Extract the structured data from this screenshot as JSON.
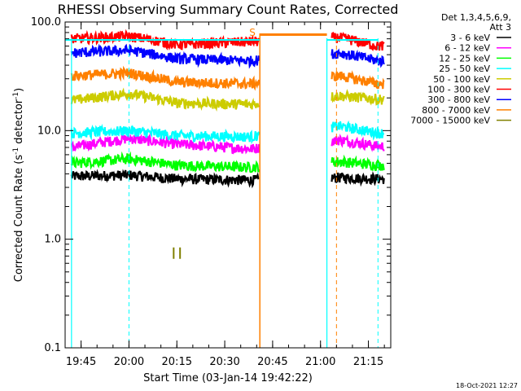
{
  "chart_data": {
    "type": "line",
    "title": "RHESSI Observing Summary Count Rates, Corrected",
    "xlabel": "Start Time (03-Jan-14 19:42:22)",
    "ylabel_main": "Corrected Count Rate (s",
    "ylabel_sup1": "-1",
    "ylabel_mid": " detector",
    "ylabel_sup2": "-1",
    "ylabel_end": ")",
    "y_scale": "log",
    "ylim": [
      0.1,
      100.0
    ],
    "xlim": [
      "19:40",
      "21:22"
    ],
    "x_ticks": [
      "19:45",
      "20:00",
      "20:15",
      "20:30",
      "20:45",
      "21:00",
      "21:15"
    ],
    "y_ticks": [
      "0.1",
      "1.0",
      "10.0",
      "100.0"
    ],
    "legend_header": [
      "Det 1,3,4,5,6,9,",
      "Att 3"
    ],
    "legend_position": "right",
    "series": [
      {
        "name": "3 - 6 keV",
        "color": "#000000",
        "x": [
          "19:42",
          "20:00",
          "20:15",
          "20:38",
          "21:06",
          "21:18"
        ],
        "y": [
          3.8,
          3.9,
          3.6,
          3.5,
          3.7,
          3.6
        ]
      },
      {
        "name": "6 - 12 keV",
        "color": "#ff00ff",
        "x": [
          "19:42",
          "20:00",
          "20:15",
          "20:38",
          "21:06",
          "21:18"
        ],
        "y": [
          7.0,
          8.5,
          7.5,
          6.8,
          8.2,
          7.2
        ]
      },
      {
        "name": "12 - 25 keV",
        "color": "#00ff00",
        "x": [
          "19:42",
          "20:00",
          "20:15",
          "20:38",
          "21:06",
          "21:18"
        ],
        "y": [
          5.0,
          5.5,
          4.8,
          4.6,
          5.2,
          4.8
        ]
      },
      {
        "name": "25 - 50 keV",
        "color": "#00ffff",
        "x": [
          "19:42",
          "20:00",
          "20:15",
          "20:38",
          "21:06",
          "21:18"
        ],
        "y": [
          9.5,
          10.0,
          9.0,
          8.8,
          11.0,
          9.5
        ]
      },
      {
        "name": "50 - 100 keV",
        "color": "#cccc00",
        "x": [
          "19:42",
          "20:00",
          "20:15",
          "20:38",
          "21:06",
          "21:18"
        ],
        "y": [
          19.0,
          22.0,
          18.0,
          17.5,
          21.0,
          19.5
        ]
      },
      {
        "name": "100 - 300 keV",
        "color": "#ff0000",
        "x": [
          "19:42",
          "20:00",
          "20:15",
          "20:38",
          "21:06",
          "21:18"
        ],
        "y": [
          70.0,
          74.0,
          62.0,
          66.0,
          72.0,
          60.0
        ]
      },
      {
        "name": "300 - 800 keV",
        "color": "#0000ff",
        "x": [
          "19:42",
          "20:00",
          "20:15",
          "20:38",
          "21:06",
          "21:18"
        ],
        "y": [
          52.0,
          55.0,
          46.0,
          44.0,
          52.0,
          44.0
        ]
      },
      {
        "name": "800 - 7000 keV",
        "color": "#ff8000",
        "x": [
          "19:42",
          "20:00",
          "20:15",
          "20:38",
          "21:06",
          "21:18"
        ],
        "y": [
          32.0,
          34.0,
          28.0,
          27.0,
          32.0,
          27.0
        ]
      },
      {
        "name": "7000 - 15000 keV",
        "color": "#808000",
        "x": [
          "20:14",
          "20:16"
        ],
        "y": [
          0.75,
          0.75
        ]
      }
    ],
    "annotations": [
      {
        "text": "S",
        "color": "#ff8000",
        "x": "20:40"
      }
    ],
    "markers": {
      "saa_span": [
        "20:41",
        "21:02"
      ],
      "night_lines": [
        "19:42",
        "21:02"
      ],
      "cyan_dashed": [
        "20:00",
        "21:18"
      ],
      "orange_dashed": [
        "21:05"
      ]
    },
    "grid": false
  },
  "footer": {
    "date_stamp": "18-Oct-2021 12:27"
  }
}
